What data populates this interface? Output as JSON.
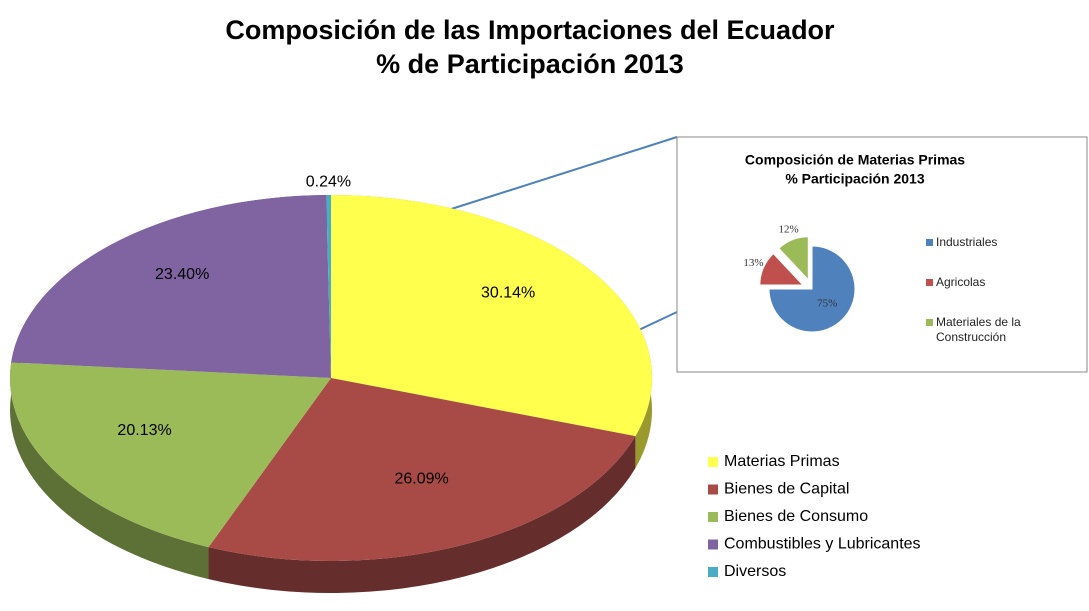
{
  "chart_data": [
    {
      "type": "pie3d",
      "title": "Composición de las Importaciones del Ecuador",
      "subtitle": "% de Participación 2013",
      "categories": [
        "Materias Primas",
        "Bienes de Capital",
        "Bienes de Consumo",
        "Combustibles y Lubricantes",
        "Diversos"
      ],
      "values": [
        30.14,
        26.09,
        20.13,
        23.4,
        0.24
      ],
      "value_labels": [
        "30.14%",
        "26.09%",
        "20.13%",
        "23.40%",
        "0.24%"
      ],
      "colors": [
        "#ffff4d",
        "#a84b47",
        "#9bbb59",
        "#8064a2",
        "#4bacc6"
      ],
      "legend": "right"
    },
    {
      "type": "pie",
      "title": "Composición de Materias Primas",
      "subtitle": "% Participación 2013",
      "categories": [
        "Industriales",
        "Agricolas",
        "Materiales de la Construcción"
      ],
      "values": [
        75,
        13,
        12
      ],
      "value_labels": [
        "75%",
        "13%",
        "12%"
      ],
      "colors": [
        "#4f81bd",
        "#c0504d",
        "#9bbb59"
      ],
      "legend": "right"
    }
  ]
}
